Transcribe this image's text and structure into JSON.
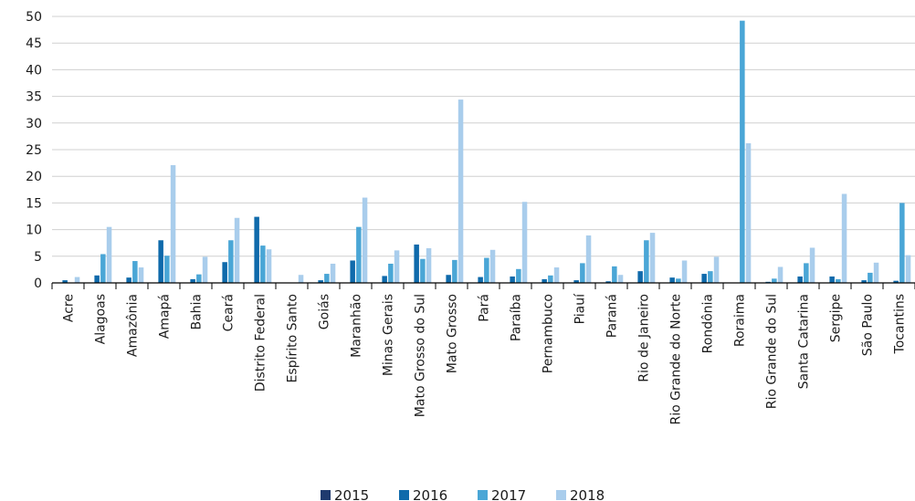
{
  "chart_data": {
    "type": "bar",
    "categories": [
      "Acre",
      "Alagoas",
      "Amazônia",
      "Amapá",
      "Bahia",
      "Ceará",
      "Distrito Federal",
      "Espírito Santo",
      "Goiás",
      "Maranhão",
      "Minas Gerais",
      "Mato Grosso do Sul",
      "Mato Grosso",
      "Pará",
      "Paraíba",
      "Pernambuco",
      "Piauí",
      "Paraná",
      "Rio de Janeiro",
      "Rio Grande do Norte",
      "Rondônia",
      "Roraima",
      "Rio Grande do Sul",
      "Santa Catarina",
      "Sergipe",
      "São Paulo",
      "Tocantins"
    ],
    "series": [
      {
        "name": "2015",
        "color": "#1f3a6e",
        "values": [
          0,
          0,
          0,
          0,
          0,
          0,
          0,
          0,
          0,
          0,
          0,
          0,
          0,
          0,
          0,
          0,
          0,
          0,
          0,
          0,
          0,
          0,
          0,
          0,
          0,
          0,
          0
        ]
      },
      {
        "name": "2016",
        "color": "#0f6aab",
        "values": [
          0.5,
          1.4,
          1.0,
          8.0,
          0.7,
          3.9,
          12.4,
          0,
          0.5,
          4.2,
          1.3,
          7.2,
          1.5,
          1.1,
          1.2,
          0.7,
          0.5,
          0.3,
          2.2,
          1.0,
          1.7,
          0,
          0.2,
          1.2,
          1.2,
          0.5,
          0.4
        ]
      },
      {
        "name": "2017",
        "color": "#4aa6d6",
        "values": [
          0,
          5.4,
          4.1,
          5.1,
          1.6,
          8.0,
          7.0,
          0,
          1.7,
          10.5,
          3.6,
          4.5,
          4.3,
          4.7,
          2.6,
          1.4,
          3.7,
          3.1,
          8.0,
          0.8,
          2.2,
          49.2,
          0.8,
          3.7,
          0.7,
          1.9,
          15.0
        ]
      },
      {
        "name": "2018",
        "color": "#a9cdec",
        "values": [
          1.1,
          10.5,
          2.9,
          22.1,
          4.9,
          12.2,
          6.3,
          1.5,
          3.6,
          16.0,
          6.1,
          6.5,
          34.4,
          6.2,
          15.2,
          2.9,
          8.9,
          1.5,
          9.4,
          4.2,
          4.9,
          26.2,
          3.0,
          6.6,
          16.7,
          3.8,
          5.2
        ]
      }
    ],
    "ylim": [
      0,
      50
    ],
    "yticks": [
      "0",
      "5",
      "10",
      "15",
      "20",
      "25",
      "30",
      "35",
      "40",
      "45",
      "50"
    ],
    "grid": true,
    "legend": "bottom"
  }
}
